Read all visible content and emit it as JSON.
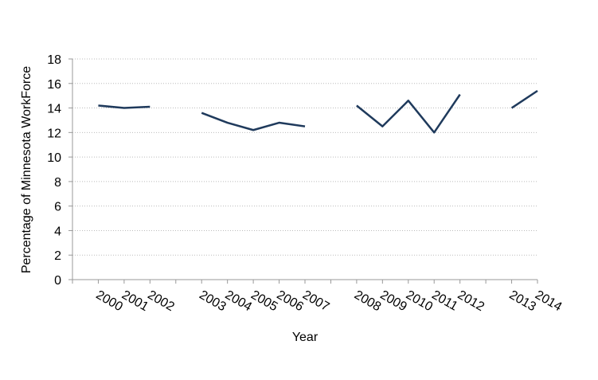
{
  "chart_data": {
    "type": "line",
    "x_label": "Year",
    "y_label": "Percentage of Minnesota WorkForce",
    "categories": [
      null,
      "2000",
      "2001",
      "2002",
      null,
      "2003",
      "2004",
      "2005",
      "2006",
      "2007",
      null,
      "2008",
      "2009",
      "2010",
      "2011",
      "2012",
      null,
      "2013",
      "2014"
    ],
    "series": [
      {
        "color": "#1f3a5c",
        "values": [
          null,
          14.2,
          14.0,
          14.1,
          null,
          13.6,
          12.8,
          12.2,
          12.8,
          12.5,
          null,
          14.2,
          12.5,
          14.6,
          12.0,
          15.1,
          null,
          14.0,
          15.4
        ]
      }
    ],
    "ylim": [
      0,
      18
    ],
    "yticks": [
      0,
      2,
      4,
      6,
      8,
      10,
      12,
      14,
      16,
      18
    ],
    "grid": true
  }
}
